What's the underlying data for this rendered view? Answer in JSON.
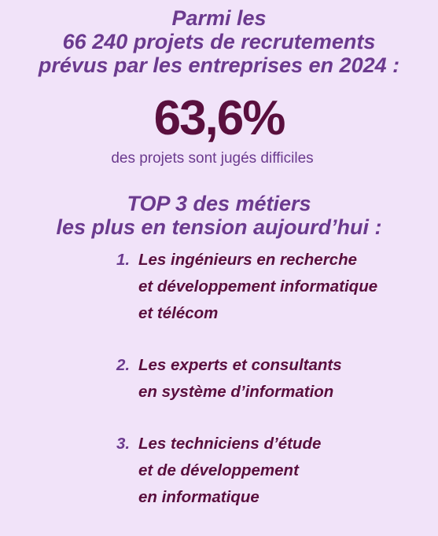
{
  "intro": {
    "lines": [
      "Parmi les",
      "66 240 projets de recrutements",
      "prévus par les entreprises en 2024 :"
    ]
  },
  "stat": {
    "value": "63,6%",
    "caption": "des projets sont jugés difficiles"
  },
  "top3": {
    "lines": [
      "TOP 3 des métiers",
      "les plus en tension aujourd’hui :"
    ],
    "items": [
      {
        "number": "1.",
        "lines": [
          "Les ingénieurs en recherche",
          "et développement informatique",
          "et télécom"
        ]
      },
      {
        "number": "2.",
        "lines": [
          "Les experts et consultants",
          "en système d’information"
        ]
      },
      {
        "number": "3.",
        "lines": [
          "Les techniciens d’étude",
          "et de développement",
          "en informatique"
        ]
      }
    ]
  },
  "colors": {
    "background": "#f1e3f9",
    "accent_purple": "#6b3a8e",
    "dark_plum": "#5a0f3e"
  }
}
